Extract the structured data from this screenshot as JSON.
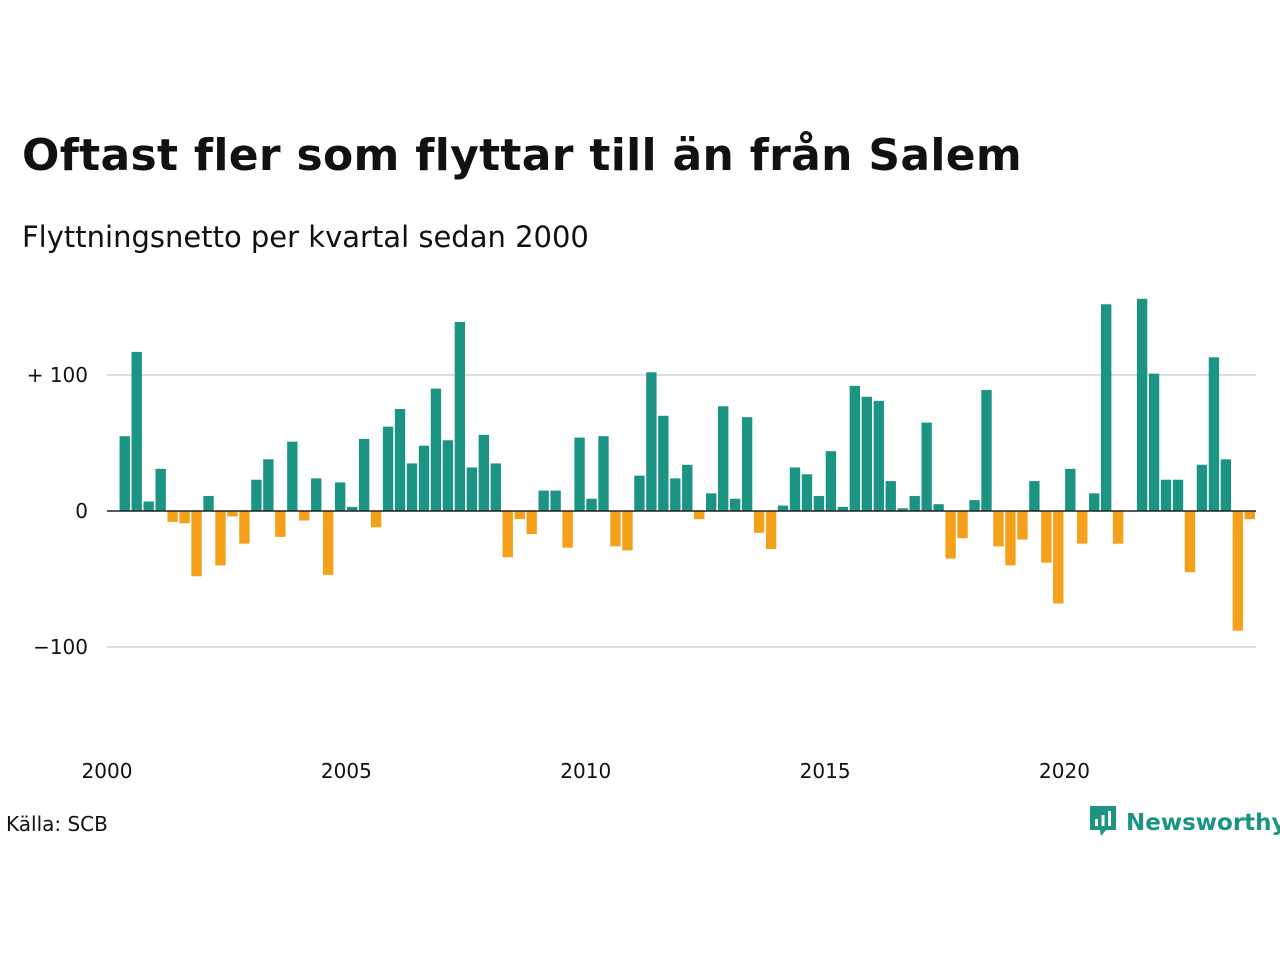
{
  "title": "Oftast fler som flyttar till än från Salem",
  "subtitle": "Flyttningsnetto per kvartal sedan 2000",
  "source": "Källa: SCB",
  "brand": {
    "name": "Newsworthy",
    "icon": "newsworthy-logo-icon"
  },
  "colors": {
    "positive": "#1b9484",
    "negative": "#f5a01b",
    "grid": "#dddddd",
    "zero": "#222222"
  },
  "chart_data": {
    "type": "bar",
    "title": "Oftast fler som flyttar till än från Salem",
    "subtitle": "Flyttningsnetto per kvartal sedan 2000",
    "xlabel": "",
    "ylabel": "",
    "x_start": 2000,
    "x_end": 2024,
    "periods_per_year": 4,
    "x_ticks": [
      2000,
      2005,
      2010,
      2015,
      2020
    ],
    "x_tick_labels": [
      "2000",
      "2005",
      "2010",
      "2015",
      "2020"
    ],
    "y_ticks": [
      100,
      0,
      -100
    ],
    "y_tick_labels": [
      "+ 100",
      "0",
      "−100"
    ],
    "ylim": [
      -160,
      160
    ],
    "grid": true,
    "categories": [
      "2000 Q1",
      "2000 Q2",
      "2000 Q3",
      "2000 Q4",
      "2001 Q1",
      "2001 Q2",
      "2001 Q3",
      "2001 Q4",
      "2002 Q1",
      "2002 Q2",
      "2002 Q3",
      "2002 Q4",
      "2003 Q1",
      "2003 Q2",
      "2003 Q3",
      "2003 Q4",
      "2004 Q1",
      "2004 Q2",
      "2004 Q3",
      "2004 Q4",
      "2005 Q1",
      "2005 Q2",
      "2005 Q3",
      "2005 Q4",
      "2006 Q1",
      "2006 Q2",
      "2006 Q3",
      "2006 Q4",
      "2007 Q1",
      "2007 Q2",
      "2007 Q3",
      "2007 Q4",
      "2008 Q1",
      "2008 Q2",
      "2008 Q3",
      "2008 Q4",
      "2009 Q1",
      "2009 Q2",
      "2009 Q3",
      "2009 Q4",
      "2010 Q1",
      "2010 Q2",
      "2010 Q3",
      "2010 Q4",
      "2011 Q1",
      "2011 Q2",
      "2011 Q3",
      "2011 Q4",
      "2012 Q1",
      "2012 Q2",
      "2012 Q3",
      "2012 Q4",
      "2013 Q1",
      "2013 Q2",
      "2013 Q3",
      "2013 Q4",
      "2014 Q1",
      "2014 Q2",
      "2014 Q3",
      "2014 Q4",
      "2015 Q1",
      "2015 Q2",
      "2015 Q3",
      "2015 Q4",
      "2016 Q1",
      "2016 Q2",
      "2016 Q3",
      "2016 Q4",
      "2017 Q1",
      "2017 Q2",
      "2017 Q3",
      "2017 Q4",
      "2018 Q1",
      "2018 Q2",
      "2018 Q3",
      "2018 Q4",
      "2019 Q1",
      "2019 Q2",
      "2019 Q3",
      "2019 Q4",
      "2020 Q1",
      "2020 Q2",
      "2020 Q3",
      "2020 Q4",
      "2021 Q1",
      "2021 Q2",
      "2021 Q3",
      "2021 Q4",
      "2022 Q1",
      "2022 Q2",
      "2022 Q3",
      "2022 Q4",
      "2023 Q1",
      "2023 Q2",
      "2023 Q3",
      "2023 Q4",
      "2024 Q1"
    ],
    "values": [
      0,
      55,
      117,
      7,
      31,
      -8,
      -9,
      -48,
      11,
      -40,
      -4,
      -24,
      23,
      38,
      -19,
      51,
      -7,
      24,
      -47,
      21,
      3,
      53,
      -12,
      62,
      75,
      35,
      48,
      90,
      52,
      139,
      32,
      56,
      35,
      -34,
      -6,
      -17,
      15,
      15,
      -27,
      54,
      9,
      55,
      -26,
      -29,
      26,
      102,
      70,
      24,
      34,
      -6,
      13,
      77,
      9,
      69,
      -16,
      -28,
      4,
      32,
      27,
      11,
      44,
      3,
      92,
      84,
      81,
      22,
      2,
      11,
      65,
      5,
      -35,
      -20,
      8,
      89,
      -26,
      -40,
      -21,
      22,
      -38,
      -68,
      31,
      -24,
      13,
      152,
      -24,
      0,
      156,
      101,
      23,
      23,
      -45,
      34,
      113,
      38,
      -88,
      -6,
      0
    ]
  }
}
